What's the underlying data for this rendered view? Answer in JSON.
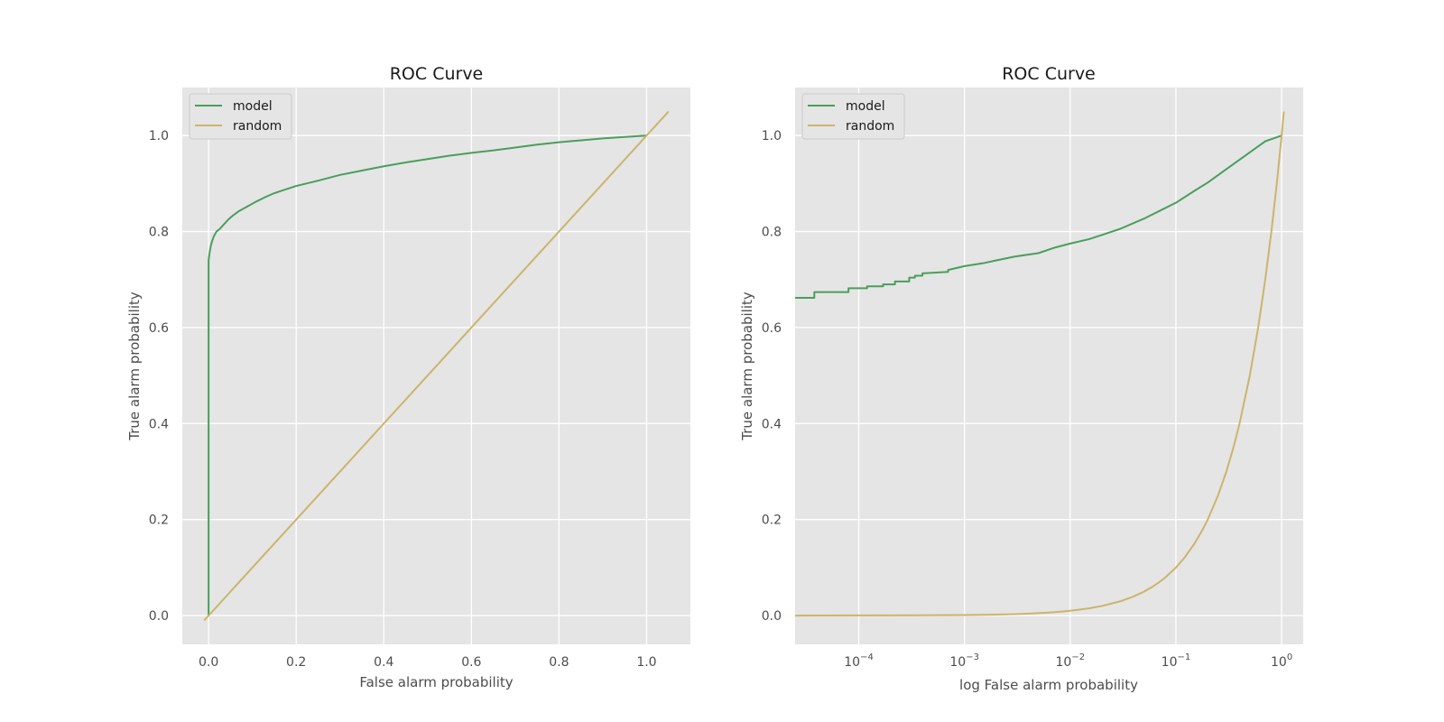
{
  "chart_data": [
    {
      "type": "line",
      "title": "ROC Curve",
      "xlabel": "False alarm probability",
      "ylabel": "True alarm probability",
      "xscale": "linear",
      "xlim": [
        -0.06,
        1.1
      ],
      "ylim": [
        -0.06,
        1.1
      ],
      "xticks": [
        0.0,
        0.2,
        0.4,
        0.6,
        0.8,
        1.0
      ],
      "xtick_labels": [
        "0.0",
        "0.2",
        "0.4",
        "0.6",
        "0.8",
        "1.0"
      ],
      "yticks": [
        0.0,
        0.2,
        0.4,
        0.6,
        0.8,
        1.0
      ],
      "ytick_labels": [
        "0.0",
        "0.2",
        "0.4",
        "0.6",
        "0.8",
        "1.0"
      ],
      "grid": true,
      "legend": "upper-left",
      "series": [
        {
          "name": "model",
          "color": "#4a9e5c",
          "x": [
            0.0,
            0.0,
            0.003,
            0.005,
            0.008,
            0.012,
            0.018,
            0.025,
            0.035,
            0.045,
            0.055,
            0.07,
            0.09,
            0.11,
            0.13,
            0.15,
            0.17,
            0.2,
            0.25,
            0.3,
            0.35,
            0.4,
            0.45,
            0.5,
            0.55,
            0.6,
            0.65,
            0.7,
            0.75,
            0.8,
            0.85,
            0.9,
            0.95,
            1.0
          ],
          "y": [
            0.0,
            0.74,
            0.76,
            0.77,
            0.78,
            0.79,
            0.8,
            0.805,
            0.815,
            0.825,
            0.833,
            0.843,
            0.853,
            0.863,
            0.872,
            0.88,
            0.886,
            0.895,
            0.906,
            0.918,
            0.927,
            0.936,
            0.944,
            0.951,
            0.958,
            0.964,
            0.969,
            0.975,
            0.981,
            0.986,
            0.99,
            0.994,
            0.997,
            1.0
          ]
        },
        {
          "name": "random",
          "color": "#ccb46c",
          "x": [
            -0.01,
            1.05
          ],
          "y": [
            -0.01,
            1.05
          ]
        }
      ]
    },
    {
      "type": "line",
      "title": "ROC Curve",
      "xlabel": "log False alarm probability",
      "ylabel": "True alarm probability",
      "xscale": "log",
      "xlim": [
        2.5e-05,
        1.6
      ],
      "ylim": [
        -0.06,
        1.1
      ],
      "xticks": [
        0.0001,
        0.001,
        0.01,
        0.1,
        1
      ],
      "xtick_labels": [
        {
          "base": "10",
          "exp": "−4"
        },
        {
          "base": "10",
          "exp": "−3"
        },
        {
          "base": "10",
          "exp": "−2"
        },
        {
          "base": "10",
          "exp": "−1"
        },
        {
          "base": "10",
          "exp": "0"
        }
      ],
      "yticks": [
        0.0,
        0.2,
        0.4,
        0.6,
        0.8,
        1.0
      ],
      "ytick_labels": [
        "0.0",
        "0.2",
        "0.4",
        "0.6",
        "0.8",
        "1.0"
      ],
      "grid": true,
      "legend": "upper-left",
      "series": [
        {
          "name": "model",
          "color": "#4a9e5c",
          "step": true,
          "x": [
            2.5e-05,
            3.8e-05,
            3.8e-05,
            8e-05,
            8e-05,
            0.00012,
            0.00012,
            0.00017,
            0.00017,
            0.00022,
            0.00022,
            0.0003,
            0.0003,
            0.00034,
            0.00034,
            0.0004,
            0.0004,
            0.0007,
            0.0007,
            0.001,
            0.0015,
            0.002,
            0.003,
            0.005,
            0.007,
            0.01,
            0.015,
            0.02,
            0.03,
            0.05,
            0.07,
            0.1,
            0.15,
            0.2,
            0.3,
            0.5,
            0.7,
            1.0
          ],
          "y": [
            0.662,
            0.662,
            0.674,
            0.674,
            0.682,
            0.682,
            0.686,
            0.686,
            0.69,
            0.69,
            0.696,
            0.696,
            0.704,
            0.704,
            0.708,
            0.708,
            0.713,
            0.716,
            0.72,
            0.728,
            0.734,
            0.74,
            0.748,
            0.755,
            0.766,
            0.775,
            0.784,
            0.793,
            0.806,
            0.827,
            0.843,
            0.86,
            0.885,
            0.902,
            0.93,
            0.965,
            0.988,
            1.0
          ]
        },
        {
          "name": "random",
          "color": "#ccb46c",
          "x": [
            2.5e-05,
            0.001,
            0.002,
            0.003,
            0.005,
            0.007,
            0.01,
            0.015,
            0.02,
            0.03,
            0.04,
            0.05,
            0.06,
            0.07,
            0.08,
            0.1,
            0.12,
            0.15,
            0.18,
            0.2,
            0.25,
            0.3,
            0.35,
            0.4,
            0.5,
            0.6,
            0.7,
            0.8,
            0.9,
            1.0,
            1.05
          ],
          "y": [
            2.5e-05,
            0.001,
            0.002,
            0.003,
            0.005,
            0.007,
            0.01,
            0.015,
            0.02,
            0.03,
            0.04,
            0.05,
            0.06,
            0.07,
            0.08,
            0.1,
            0.12,
            0.15,
            0.18,
            0.2,
            0.25,
            0.3,
            0.35,
            0.4,
            0.5,
            0.6,
            0.7,
            0.8,
            0.9,
            1.0,
            1.05
          ]
        }
      ]
    }
  ],
  "colors": {
    "figure_background": "#ffffff",
    "axes_background": "#e5e5e5",
    "grid": "#ffffff",
    "text": "#4d4d4d"
  }
}
